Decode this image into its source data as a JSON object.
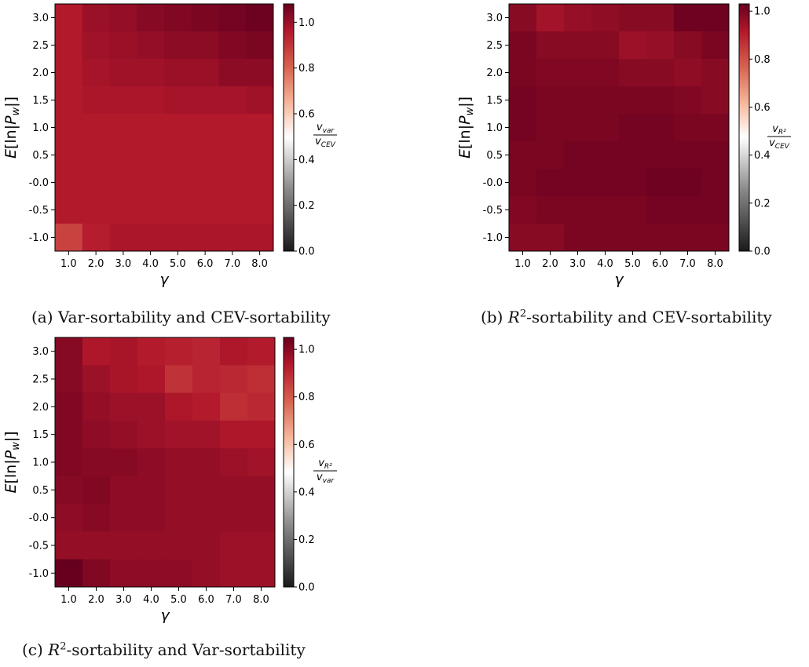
{
  "chart_data": [
    {
      "type": "heatmap",
      "caption": "(a) Var-sortability and CEV-sortability",
      "xlabel": "γ",
      "ylabel": "E[ln|P_w|]",
      "x": [
        "1.0",
        "2.0",
        "3.0",
        "4.0",
        "5.0",
        "6.0",
        "7.0",
        "8.0"
      ],
      "y": [
        "3.0",
        "2.5",
        "2.0",
        "1.5",
        "1.0",
        "0.5",
        "-0.0",
        "-0.5",
        "-1.0"
      ],
      "colorbar": {
        "label_num": "v_var",
        "label_den": "v_CEV",
        "min": 0.0,
        "max": 1.08,
        "ticks": [
          "0.0",
          "0.2",
          "0.4",
          "0.6",
          "0.8",
          "1.0"
        ]
      },
      "values": [
        [
          0.96,
          1.0,
          1.01,
          1.03,
          1.04,
          1.05,
          1.06,
          1.07
        ],
        [
          0.96,
          0.99,
          1.0,
          1.01,
          1.02,
          1.02,
          1.04,
          1.05
        ],
        [
          0.96,
          0.98,
          0.99,
          0.99,
          1.0,
          1.0,
          1.02,
          1.02
        ],
        [
          0.96,
          0.97,
          0.97,
          0.97,
          0.98,
          0.98,
          0.98,
          0.99
        ],
        [
          0.96,
          0.96,
          0.96,
          0.96,
          0.96,
          0.96,
          0.96,
          0.96
        ],
        [
          0.96,
          0.96,
          0.96,
          0.96,
          0.96,
          0.96,
          0.96,
          0.96
        ],
        [
          0.96,
          0.96,
          0.96,
          0.96,
          0.96,
          0.96,
          0.96,
          0.96
        ],
        [
          0.96,
          0.96,
          0.96,
          0.96,
          0.96,
          0.96,
          0.96,
          0.96
        ],
        [
          0.87,
          0.95,
          0.97,
          0.97,
          0.97,
          0.97,
          0.97,
          0.97
        ]
      ]
    },
    {
      "type": "heatmap",
      "caption": "(b) R2-sortability and CEV-sortability",
      "xlabel": "γ",
      "ylabel": "E[ln|P_w|]",
      "x": [
        "1.0",
        "2.0",
        "3.0",
        "4.0",
        "5.0",
        "6.0",
        "7.0",
        "8.0"
      ],
      "y": [
        "3.0",
        "2.5",
        "2.0",
        "1.5",
        "1.0",
        "0.5",
        "-0.0",
        "-0.5",
        "-1.0"
      ],
      "colorbar": {
        "label_num": "v_R²",
        "label_den": "v_CEV",
        "min": 0.0,
        "max": 1.03,
        "ticks": [
          "0.0",
          "0.2",
          "0.4",
          "0.6",
          "0.8",
          "1.0"
        ]
      },
      "values": [
        [
          0.98,
          0.94,
          0.96,
          0.97,
          0.98,
          0.98,
          1.02,
          1.02
        ],
        [
          1.0,
          0.98,
          0.98,
          0.98,
          0.95,
          0.96,
          0.98,
          1.0
        ],
        [
          1.0,
          0.99,
          0.99,
          0.99,
          0.98,
          0.98,
          0.97,
          0.98
        ],
        [
          1.01,
          1.0,
          1.0,
          1.0,
          1.0,
          1.0,
          0.99,
          0.98
        ],
        [
          1.01,
          1.0,
          1.0,
          1.0,
          1.01,
          1.01,
          1.0,
          1.0
        ],
        [
          1.0,
          1.0,
          1.01,
          1.01,
          1.01,
          1.01,
          1.01,
          1.01
        ],
        [
          1.0,
          1.01,
          1.01,
          1.01,
          1.01,
          1.02,
          1.02,
          1.01
        ],
        [
          0.99,
          1.0,
          1.0,
          1.0,
          1.0,
          1.01,
          1.01,
          1.01
        ],
        [
          0.98,
          0.98,
          1.0,
          1.0,
          1.0,
          1.0,
          1.0,
          1.0
        ]
      ]
    },
    {
      "type": "heatmap",
      "caption": "(c) R2-sortability and Var-sortability",
      "xlabel": "γ",
      "ylabel": "E[ln|P_w|]",
      "x": [
        "1.0",
        "2.0",
        "3.0",
        "4.0",
        "5.0",
        "6.0",
        "7.0",
        "8.0"
      ],
      "y": [
        "3.0",
        "2.5",
        "2.0",
        "1.5",
        "1.0",
        "0.5",
        "-0.0",
        "-0.5",
        "-1.0"
      ],
      "colorbar": {
        "label_num": "v_R²",
        "label_den": "v_var",
        "min": 0.0,
        "max": 1.05,
        "ticks": [
          "0.0",
          "0.2",
          "0.4",
          "0.6",
          "0.8",
          "1.0"
        ]
      },
      "values": [
        [
          1.0,
          0.94,
          0.95,
          0.93,
          0.92,
          0.91,
          0.94,
          0.93
        ],
        [
          1.0,
          0.97,
          0.95,
          0.94,
          0.88,
          0.91,
          0.9,
          0.89
        ],
        [
          1.01,
          0.98,
          0.97,
          0.97,
          0.94,
          0.93,
          0.89,
          0.9
        ],
        [
          1.01,
          0.99,
          0.98,
          0.97,
          0.96,
          0.96,
          0.94,
          0.94
        ],
        [
          1.01,
          1.0,
          1.0,
          0.99,
          0.98,
          0.98,
          0.97,
          0.96
        ],
        [
          1.0,
          1.01,
          0.99,
          0.99,
          0.98,
          0.98,
          0.98,
          0.98
        ],
        [
          0.99,
          1.0,
          0.99,
          0.99,
          0.98,
          0.98,
          0.98,
          0.98
        ],
        [
          0.98,
          0.98,
          0.98,
          0.98,
          0.98,
          0.98,
          0.97,
          0.97
        ],
        [
          1.06,
          1.01,
          0.99,
          0.99,
          0.99,
          0.98,
          0.97,
          0.97
        ]
      ]
    }
  ],
  "captions": {
    "a": {
      "text": "(a) Var-sortability and CEV-sortability"
    },
    "b": {
      "prefix": "(b) ",
      "var": "R",
      "sup": "2",
      "rest": "-sortability and CEV-sortability"
    },
    "c": {
      "prefix": "(c) ",
      "var": "R",
      "sup": "2",
      "rest": "-sortability and Var-sortability"
    }
  }
}
